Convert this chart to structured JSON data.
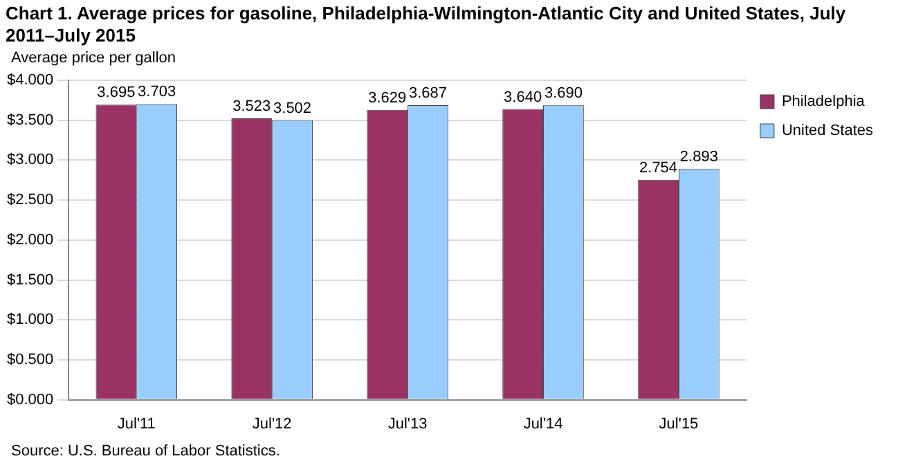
{
  "chart_data": {
    "type": "bar",
    "title": "Chart 1. Average prices for gasoline, Philadelphia-Wilmington-Atlantic City and United States, July 2011–July 2015",
    "ylabel": "Average price per gallon",
    "categories": [
      "Jul'11",
      "Jul'12",
      "Jul'13",
      "Jul'14",
      "Jul'15"
    ],
    "series": [
      {
        "name": "Philadelphia",
        "color": "#993366",
        "values": [
          3.695,
          3.523,
          3.629,
          3.64,
          2.754
        ],
        "value_labels": [
          "3.695",
          "3.523",
          "3.629",
          "3.640",
          "2.754"
        ]
      },
      {
        "name": "United States",
        "color": "#99ccff",
        "values": [
          3.703,
          3.502,
          3.687,
          3.69,
          2.893
        ],
        "value_labels": [
          "3.703",
          "3.502",
          "3.687",
          "3.690",
          "2.893"
        ]
      }
    ],
    "ylim": [
      0,
      4
    ],
    "yticks": [
      {
        "value": 0,
        "label": "$0.000"
      },
      {
        "value": 0.5,
        "label": "$0.500"
      },
      {
        "value": 1,
        "label": "$1.000"
      },
      {
        "value": 1.5,
        "label": "$1.500"
      },
      {
        "value": 2,
        "label": "$2.000"
      },
      {
        "value": 2.5,
        "label": "$2.500"
      },
      {
        "value": 3,
        "label": "$3.000"
      },
      {
        "value": 3.5,
        "label": "$3.500"
      },
      {
        "value": 4,
        "label": "$4.000"
      }
    ],
    "grid": "y",
    "legend": "top right",
    "annotations": [
      "Source: U.S. Bureau of Labor Statistics."
    ]
  }
}
